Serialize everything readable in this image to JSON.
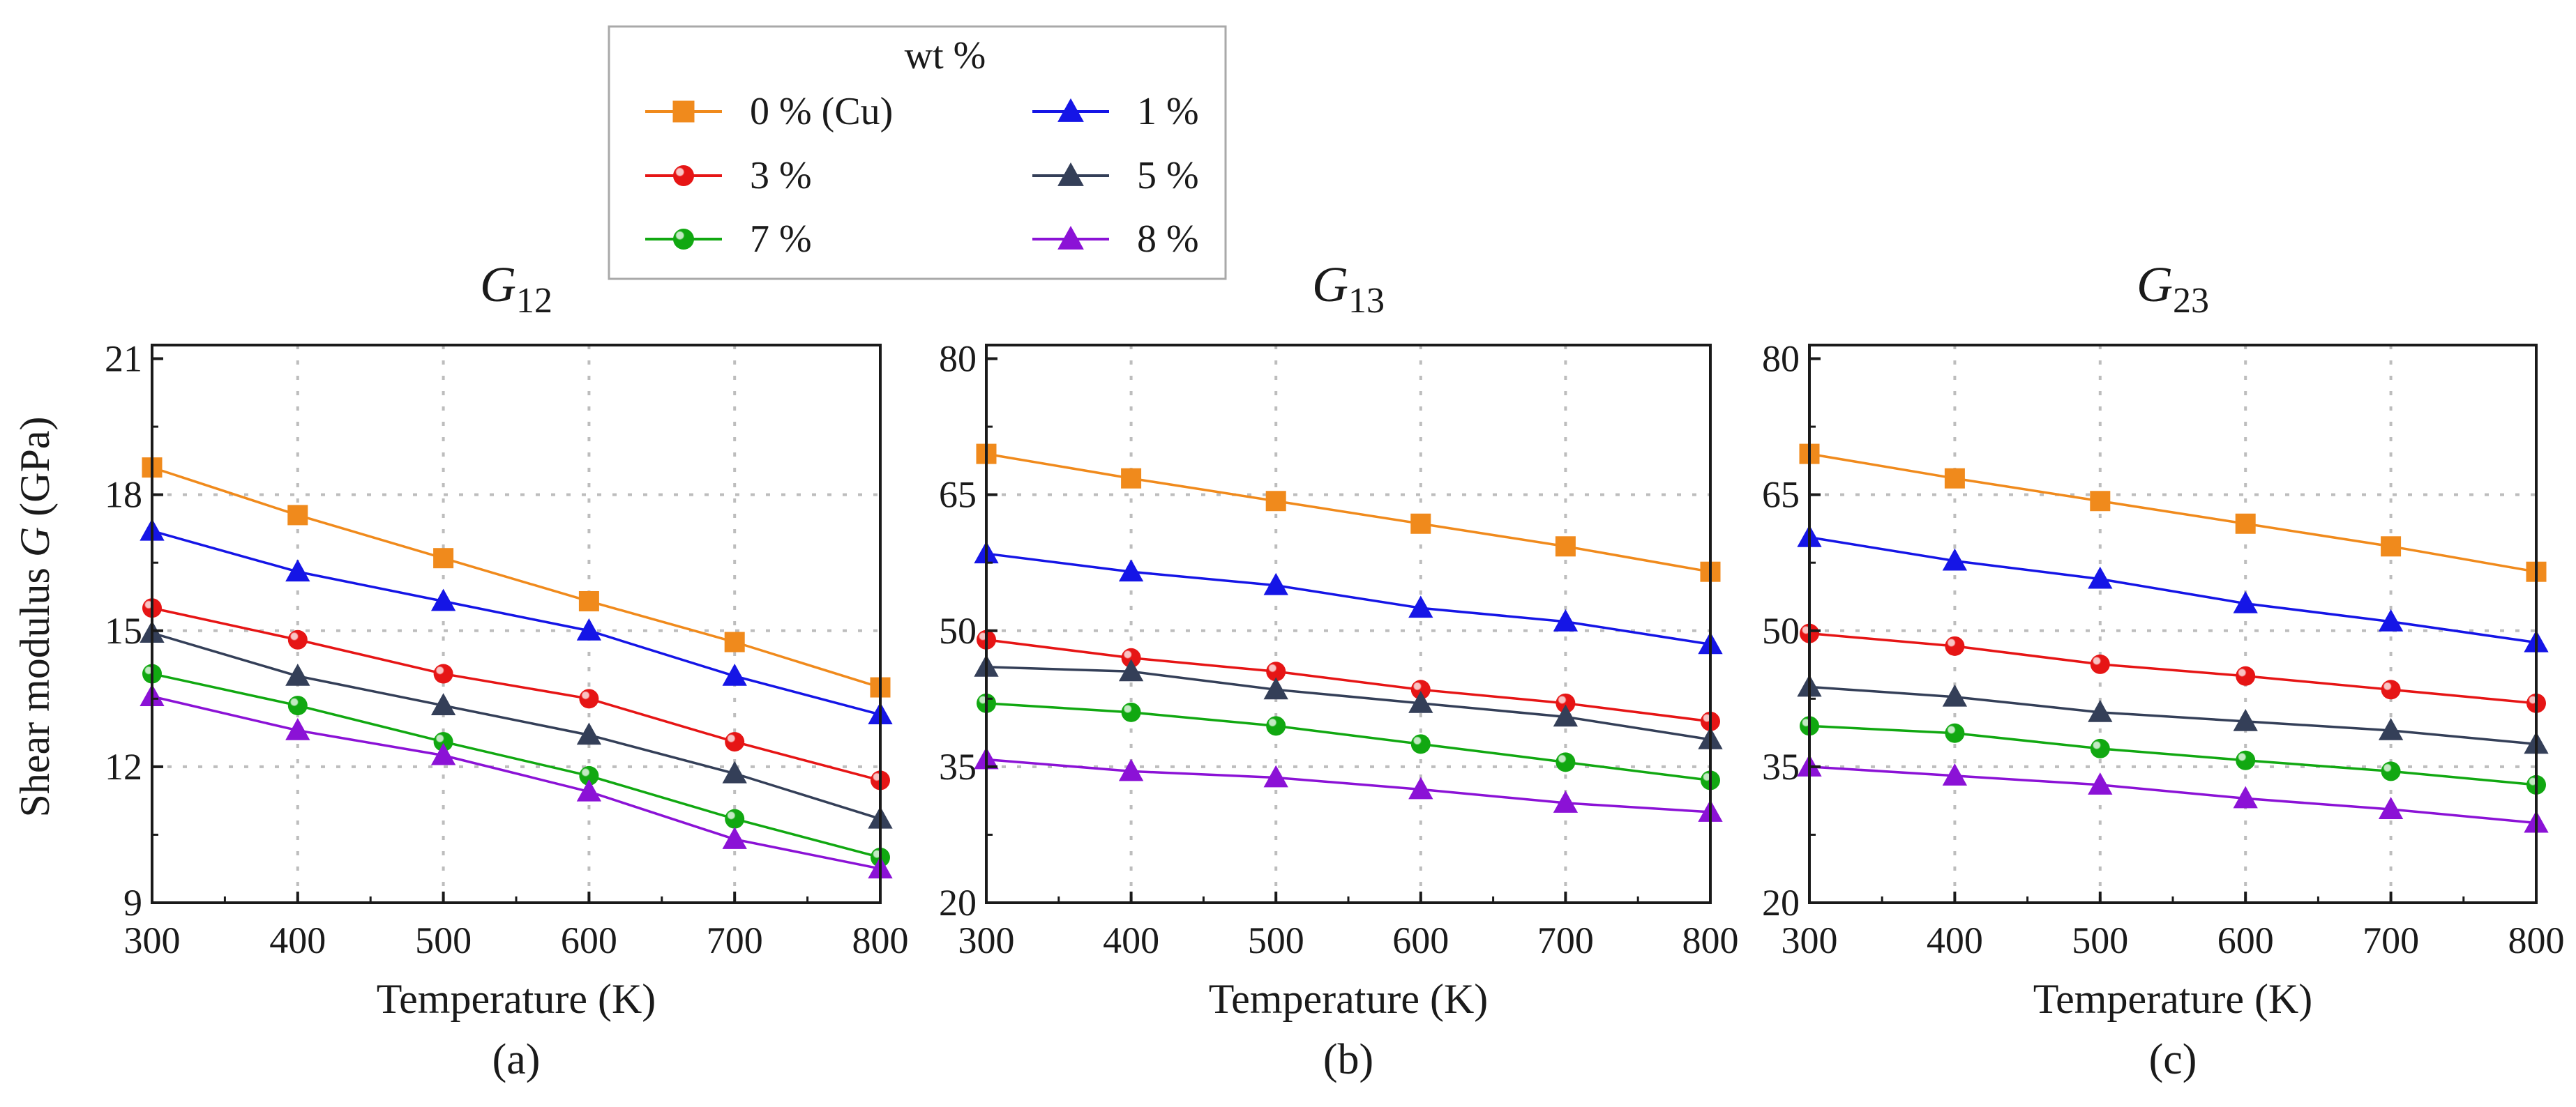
{
  "figure": {
    "ylabel_prefix": "Shear modulus ",
    "ylabel_var": "G",
    "ylabel_suffix": " (GPa)"
  },
  "legend": {
    "title": "wt %",
    "entries": [
      {
        "label": "0 % (Cu)",
        "color": "#F08A1C",
        "marker": "square"
      },
      {
        "label": "1 %",
        "color": "#1515E6",
        "marker": "triangle"
      },
      {
        "label": "3 %",
        "color": "#E61515",
        "marker": "circle"
      },
      {
        "label": "5 %",
        "color": "#343F58",
        "marker": "triangle"
      },
      {
        "label": "7 %",
        "color": "#11A811",
        "marker": "circle"
      },
      {
        "label": "8 %",
        "color": "#8B12D6",
        "marker": "triangle"
      }
    ]
  },
  "chart_data": [
    {
      "type": "line",
      "title_main": "G",
      "title_sub": "12",
      "panel_label": "(a)",
      "xlabel": "Temperature (K)",
      "x": [
        300,
        400,
        500,
        600,
        700,
        800
      ],
      "xticks": [
        300,
        400,
        500,
        600,
        700,
        800
      ],
      "yticks": [
        9,
        12,
        15,
        18,
        21
      ],
      "xlim": [
        300,
        800
      ],
      "ylim": [
        9,
        21.3
      ],
      "grid": true,
      "series": [
        {
          "name": "0 % (Cu)",
          "values": [
            18.6,
            17.55,
            16.6,
            15.65,
            14.75,
            13.75
          ]
        },
        {
          "name": "1 %",
          "values": [
            17.2,
            16.3,
            15.65,
            15.0,
            14.0,
            13.15
          ]
        },
        {
          "name": "3 %",
          "values": [
            15.5,
            14.8,
            14.05,
            13.5,
            12.55,
            11.7
          ]
        },
        {
          "name": "5 %",
          "values": [
            14.95,
            14.0,
            13.35,
            12.7,
            11.85,
            10.85
          ]
        },
        {
          "name": "7 %",
          "values": [
            14.05,
            13.35,
            12.55,
            11.8,
            10.85,
            10.0
          ]
        },
        {
          "name": "8 %",
          "values": [
            13.55,
            12.8,
            12.25,
            11.45,
            10.4,
            9.75
          ]
        }
      ]
    },
    {
      "type": "line",
      "title_main": "G",
      "title_sub": "13",
      "panel_label": "(b)",
      "xlabel": "Temperature (K)",
      "x": [
        300,
        400,
        500,
        600,
        700,
        800
      ],
      "xticks": [
        300,
        400,
        500,
        600,
        700,
        800
      ],
      "yticks": [
        20,
        35,
        50,
        65,
        80
      ],
      "xlim": [
        300,
        800
      ],
      "ylim": [
        20,
        81.5
      ],
      "grid": true,
      "series": [
        {
          "name": "0 % (Cu)",
          "values": [
            69.5,
            66.8,
            64.3,
            61.8,
            59.3,
            56.5
          ]
        },
        {
          "name": "1 %",
          "values": [
            58.5,
            56.5,
            55.0,
            52.5,
            51.0,
            48.5
          ]
        },
        {
          "name": "3 %",
          "values": [
            49.0,
            47.0,
            45.5,
            43.5,
            42.0,
            40.0
          ]
        },
        {
          "name": "5 %",
          "values": [
            46.0,
            45.5,
            43.5,
            42.0,
            40.5,
            38.0
          ]
        },
        {
          "name": "7 %",
          "values": [
            42.0,
            41.0,
            39.5,
            37.5,
            35.5,
            33.5
          ]
        },
        {
          "name": "8 %",
          "values": [
            35.8,
            34.5,
            33.8,
            32.5,
            31.0,
            30.0
          ]
        }
      ]
    },
    {
      "type": "line",
      "title_main": "G",
      "title_sub": "23",
      "panel_label": "(c)",
      "xlabel": "Temperature (K)",
      "x": [
        300,
        400,
        500,
        600,
        700,
        800
      ],
      "xticks": [
        300,
        400,
        500,
        600,
        700,
        800
      ],
      "yticks": [
        20,
        35,
        50,
        65,
        80
      ],
      "xlim": [
        300,
        800
      ],
      "ylim": [
        20,
        81.5
      ],
      "grid": true,
      "series": [
        {
          "name": "0 % (Cu)",
          "values": [
            69.5,
            66.8,
            64.3,
            61.8,
            59.3,
            56.5
          ]
        },
        {
          "name": "1 %",
          "values": [
            60.3,
            57.7,
            55.7,
            53.0,
            51.0,
            48.7
          ]
        },
        {
          "name": "3 %",
          "values": [
            49.7,
            48.3,
            46.3,
            45.0,
            43.5,
            42.0
          ]
        },
        {
          "name": "5 %",
          "values": [
            43.8,
            42.7,
            41.0,
            40.0,
            39.0,
            37.5
          ]
        },
        {
          "name": "7 %",
          "values": [
            39.5,
            38.7,
            37.0,
            35.7,
            34.5,
            33.0
          ]
        },
        {
          "name": "8 %",
          "values": [
            35.0,
            34.0,
            33.0,
            31.5,
            30.3,
            28.8
          ]
        }
      ]
    }
  ]
}
